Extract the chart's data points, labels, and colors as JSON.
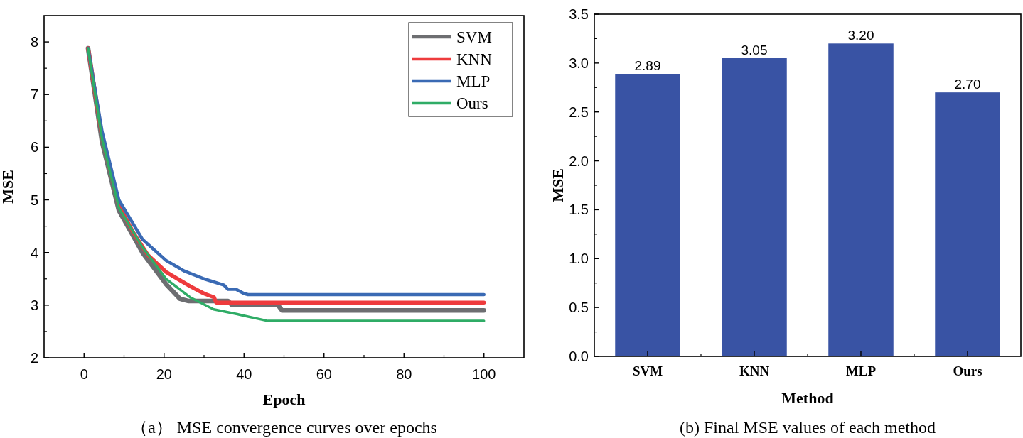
{
  "chart_data": [
    {
      "type": "line",
      "xlabel": "Epoch",
      "ylabel": "MSE",
      "xlim": [
        -10,
        110
      ],
      "xticks": [
        0,
        20,
        40,
        60,
        80,
        100
      ],
      "ylim": [
        2,
        8.5
      ],
      "yticks": [
        2,
        3,
        4,
        5,
        6,
        7,
        8
      ],
      "legend": "top right",
      "grid": false,
      "marker": "none",
      "line_style": "solid",
      "annotations": [
        "（a） MSE convergence curves over epochs"
      ],
      "series": [
        {
          "name": "SVM",
          "color": "#6d6e71",
          "x": [
            1,
            4.5,
            8.7,
            14.6,
            20.5,
            24,
            26,
            36,
            37,
            48.5,
            49.5,
            100
          ],
          "values": [
            7.88,
            6.1,
            4.8,
            4.0,
            3.4,
            3.12,
            3.08,
            3.08,
            3.0,
            3.0,
            2.9,
            2.9
          ]
        },
        {
          "name": "KNN",
          "color": "#ee3b3d",
          "x": [
            1,
            4.5,
            8.7,
            12.3,
            16,
            20.5,
            26.5,
            30,
            32.5,
            33,
            100
          ],
          "values": [
            7.88,
            6.2,
            4.9,
            4.38,
            3.95,
            3.63,
            3.36,
            3.22,
            3.15,
            3.05,
            3.05
          ]
        },
        {
          "name": "MLP",
          "color": "#3a6ab4",
          "x": [
            1,
            4.5,
            8.7,
            14.6,
            20.5,
            25,
            30,
            35,
            36,
            38,
            40,
            41,
            100
          ],
          "values": [
            7.88,
            6.3,
            5.0,
            4.25,
            3.85,
            3.65,
            3.5,
            3.38,
            3.3,
            3.3,
            3.22,
            3.2,
            3.2
          ]
        },
        {
          "name": "Ours",
          "color": "#2fac66",
          "x": [
            1,
            4.5,
            8.7,
            14.6,
            20.5,
            26.5,
            32.4,
            38.3,
            40,
            44.2,
            46,
            100
          ],
          "values": [
            7.88,
            6.15,
            4.85,
            4.1,
            3.5,
            3.15,
            2.92,
            2.83,
            2.8,
            2.73,
            2.7,
            2.7
          ]
        }
      ]
    },
    {
      "type": "bar",
      "xlabel": "Method",
      "ylabel": "MSE",
      "ylim": [
        0,
        3.5
      ],
      "yticks": [
        {
          "value": 0,
          "label": "0.0"
        },
        {
          "value": 0.5,
          "label": "0.5"
        },
        {
          "value": 1,
          "label": "1.0"
        },
        {
          "value": 1.5,
          "label": "1.5"
        },
        {
          "value": 2,
          "label": "2.0"
        },
        {
          "value": 2.5,
          "label": "2.5"
        },
        {
          "value": 3,
          "label": "3.0"
        },
        {
          "value": 3.5,
          "label": "3.5"
        }
      ],
      "grid": false,
      "annotations": [
        "(b) Final MSE values of each method"
      ],
      "categories": [
        "SVM",
        "KNN",
        "MLP",
        "Ours"
      ],
      "values": [
        2.89,
        3.05,
        3.2,
        2.7
      ],
      "value_labels": [
        "2.89",
        "3.05",
        "3.20",
        "2.70"
      ],
      "color": "#3953a4"
    }
  ]
}
